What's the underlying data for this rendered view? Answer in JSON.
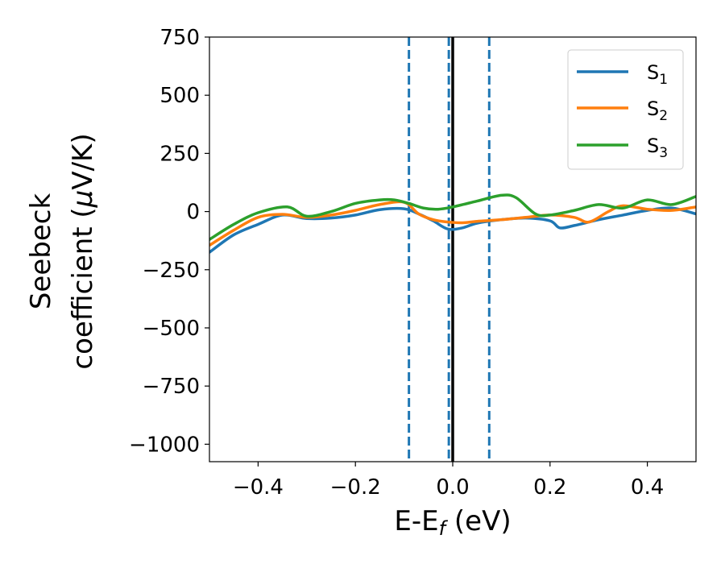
{
  "chart_data": {
    "type": "line",
    "xlabel": "E-E",
    "xlabel_sub": "f",
    "xlabel_unit": " (eV)",
    "ylabel_line1": "Seebeck",
    "ylabel_line2": "coefficient  (",
    "ylabel_mu": "μ",
    "ylabel_unit": "V/K)",
    "xlim": [
      -0.5,
      0.5
    ],
    "ylim": [
      -1075,
      750
    ],
    "xticks": [
      -0.4,
      -0.2,
      0.0,
      0.2,
      0.4
    ],
    "xtick_labels": [
      "−0.4",
      "−0.2",
      "0.0",
      "0.2",
      "0.4"
    ],
    "yticks": [
      750,
      500,
      250,
      0,
      -250,
      -500,
      -750,
      -1000
    ],
    "ytick_labels": [
      "750",
      "500",
      "250",
      "0",
      "−250",
      "−500",
      "−750",
      "−1000"
    ],
    "grid": false,
    "legend_position": "top-right",
    "series": [
      {
        "name": "S",
        "sub": "1",
        "color": "#1f77b4",
        "x": [
          -0.5,
          -0.45,
          -0.4,
          -0.35,
          -0.3,
          -0.25,
          -0.2,
          -0.15,
          -0.1,
          -0.07,
          -0.04,
          -0.01,
          0.02,
          0.05,
          0.1,
          0.15,
          0.2,
          0.22,
          0.25,
          0.3,
          0.35,
          0.4,
          0.45,
          0.5
        ],
        "y": [
          -175,
          -100,
          -55,
          -15,
          -30,
          -28,
          -15,
          8,
          12,
          -10,
          -40,
          -75,
          -70,
          -50,
          -35,
          -28,
          -40,
          -70,
          -60,
          -35,
          -15,
          5,
          15,
          -10
        ]
      },
      {
        "name": "S",
        "sub": "2",
        "color": "#ff7f0e",
        "x": [
          -0.5,
          -0.45,
          -0.4,
          -0.35,
          -0.3,
          -0.25,
          -0.2,
          -0.15,
          -0.1,
          -0.07,
          -0.04,
          -0.01,
          0.02,
          0.05,
          0.1,
          0.15,
          0.2,
          0.25,
          0.28,
          0.32,
          0.35,
          0.4,
          0.45,
          0.5
        ],
        "y": [
          -145,
          -80,
          -25,
          -12,
          -25,
          -15,
          5,
          30,
          40,
          -10,
          -35,
          -45,
          -48,
          -42,
          -35,
          -25,
          -15,
          -25,
          -45,
          0,
          25,
          10,
          5,
          20
        ]
      },
      {
        "name": "S",
        "sub": "3",
        "color": "#2ca02c",
        "x": [
          -0.5,
          -0.45,
          -0.4,
          -0.34,
          -0.3,
          -0.25,
          -0.2,
          -0.15,
          -0.12,
          -0.09,
          -0.06,
          -0.03,
          0.0,
          0.05,
          0.1,
          0.13,
          0.17,
          0.2,
          0.25,
          0.3,
          0.35,
          0.4,
          0.45,
          0.5
        ],
        "y": [
          -120,
          -55,
          -5,
          20,
          -20,
          0,
          35,
          50,
          50,
          35,
          15,
          10,
          20,
          45,
          70,
          60,
          -10,
          -15,
          5,
          30,
          15,
          50,
          30,
          65
        ]
      }
    ],
    "vlines": [
      {
        "x": -0.09,
        "style": "dashed",
        "color": "#1f77b4"
      },
      {
        "x": -0.008,
        "style": "dashed",
        "color": "#1f77b4"
      },
      {
        "x": 0.0,
        "style": "solid",
        "color": "#000000"
      },
      {
        "x": 0.075,
        "style": "dashed",
        "color": "#1f77b4"
      }
    ]
  }
}
